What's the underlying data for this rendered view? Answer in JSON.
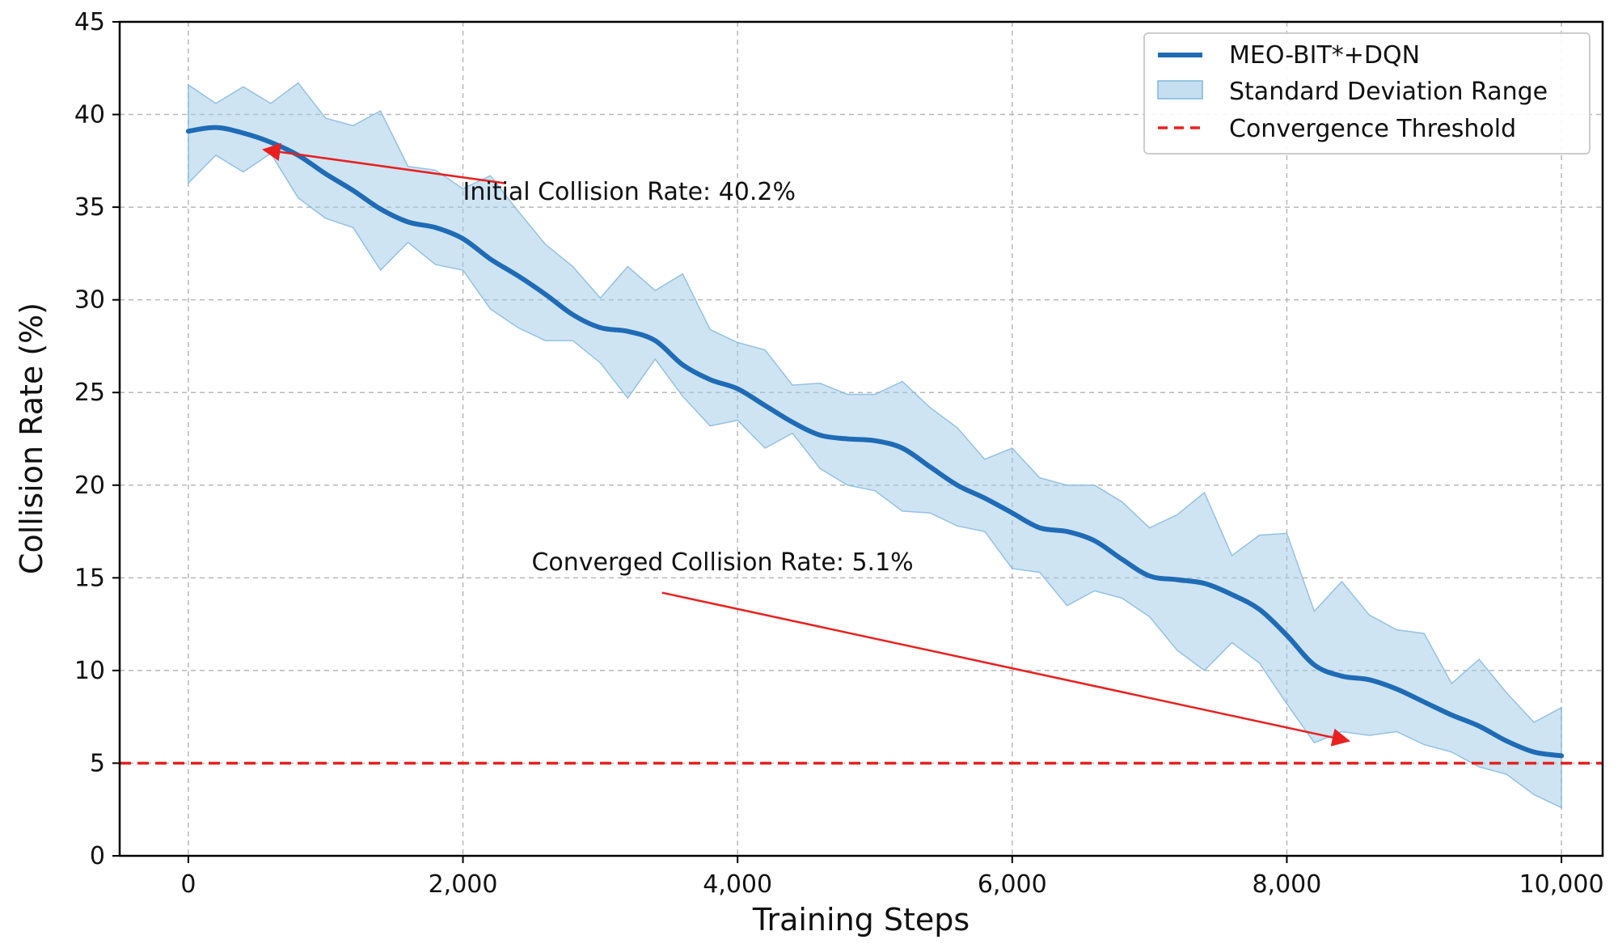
{
  "chart_data": {
    "type": "line",
    "title": "",
    "xlabel": "Training Steps",
    "ylabel": "Collision Rate (%)",
    "xlim": [
      -500,
      10300
    ],
    "ylim": [
      0,
      45
    ],
    "xticks": [
      0,
      2000,
      4000,
      6000,
      8000,
      10000
    ],
    "xtick_labels": [
      "0",
      "2,000",
      "4,000",
      "6,000",
      "8,000",
      "10,000"
    ],
    "yticks": [
      0,
      5,
      10,
      15,
      20,
      25,
      30,
      35,
      40,
      45
    ],
    "ytick_labels": [
      "0",
      "5",
      "10",
      "15",
      "20",
      "25",
      "30",
      "35",
      "40",
      "45"
    ],
    "grid": true,
    "legend_position": "top-right",
    "series": [
      {
        "name": "MEO-BIT*+DQN",
        "color": "#1f6bb5",
        "x": [
          0,
          200,
          400,
          600,
          800,
          1000,
          1200,
          1400,
          1600,
          1800,
          2000,
          2200,
          2400,
          2600,
          2800,
          3000,
          3200,
          3400,
          3600,
          3800,
          4000,
          4200,
          4400,
          4600,
          4800,
          5000,
          5200,
          5400,
          5600,
          5800,
          6000,
          6200,
          6400,
          6600,
          6800,
          7000,
          7200,
          7400,
          7600,
          7800,
          8000,
          8200,
          8400,
          8600,
          8800,
          9000,
          9200,
          9400,
          9600,
          9800,
          10000
        ],
        "values": [
          39.1,
          39.3,
          39.0,
          38.5,
          37.8,
          36.8,
          35.9,
          34.9,
          34.2,
          33.9,
          33.3,
          32.2,
          31.3,
          30.3,
          29.2,
          28.5,
          28.3,
          27.8,
          26.5,
          25.7,
          25.2,
          24.3,
          23.4,
          22.7,
          22.5,
          22.4,
          22.0,
          21.0,
          20.0,
          19.3,
          18.5,
          17.7,
          17.5,
          17.0,
          16.0,
          15.1,
          14.9,
          14.7,
          14.1,
          13.3,
          11.9,
          10.3,
          9.7,
          9.5,
          9.0,
          8.3,
          7.6,
          7.0,
          6.2,
          5.6,
          5.4
        ]
      }
    ],
    "band": {
      "name": "Standard Deviation Range",
      "color": "#9ecae7",
      "x": [
        0,
        200,
        400,
        600,
        800,
        1000,
        1200,
        1400,
        1600,
        1800,
        2000,
        2200,
        2400,
        2600,
        2800,
        3000,
        3200,
        3400,
        3600,
        3800,
        4000,
        4200,
        4400,
        4600,
        4800,
        5000,
        5200,
        5400,
        5600,
        5800,
        6000,
        6200,
        6400,
        6600,
        6800,
        7000,
        7200,
        7400,
        7600,
        7800,
        8000,
        8200,
        8400,
        8600,
        8800,
        9000,
        9200,
        9400,
        9600,
        9800,
        10000
      ],
      "upper": [
        41.6,
        40.6,
        41.5,
        40.6,
        41.7,
        39.8,
        39.4,
        40.2,
        37.2,
        37.0,
        36.0,
        36.7,
        34.8,
        33.0,
        31.8,
        30.1,
        31.8,
        30.5,
        31.4,
        28.4,
        27.7,
        27.3,
        25.4,
        25.5,
        24.9,
        24.9,
        25.6,
        24.2,
        23.1,
        21.4,
        22.0,
        20.4,
        20.0,
        20.0,
        19.1,
        17.7,
        18.4,
        19.6,
        16.2,
        17.3,
        17.4,
        13.2,
        14.8,
        13.0,
        12.2,
        12.0,
        9.3,
        10.6,
        8.8,
        7.2,
        8.0
      ],
      "lower": [
        36.3,
        37.8,
        36.9,
        37.9,
        35.5,
        34.4,
        33.9,
        31.6,
        33.1,
        31.9,
        31.6,
        29.5,
        28.5,
        27.8,
        27.8,
        26.6,
        24.7,
        26.8,
        24.8,
        23.2,
        23.5,
        22.0,
        22.8,
        20.9,
        20.0,
        19.7,
        18.6,
        18.5,
        17.8,
        17.5,
        15.5,
        15.3,
        13.5,
        14.3,
        13.9,
        12.9,
        11.1,
        10.0,
        11.5,
        10.4,
        8.2,
        6.1,
        6.7,
        6.5,
        6.7,
        6.0,
        5.6,
        4.8,
        4.4,
        3.3,
        2.6
      ]
    },
    "threshold": {
      "name": "Convergence Threshold",
      "value": 5,
      "color": "#e82020"
    },
    "annotations": [
      {
        "text": "Initial Collision Rate: 40.2%",
        "text_x": 2000,
        "text_y": 35.4,
        "from_x": 2300,
        "from_y": 36.3,
        "to_x": 550,
        "to_y": 38.1
      },
      {
        "text": "Converged Collision Rate: 5.1%",
        "text_x": 2500,
        "text_y": 15.4,
        "from_x": 3450,
        "from_y": 14.2,
        "to_x": 8450,
        "to_y": 6.2
      }
    ]
  }
}
